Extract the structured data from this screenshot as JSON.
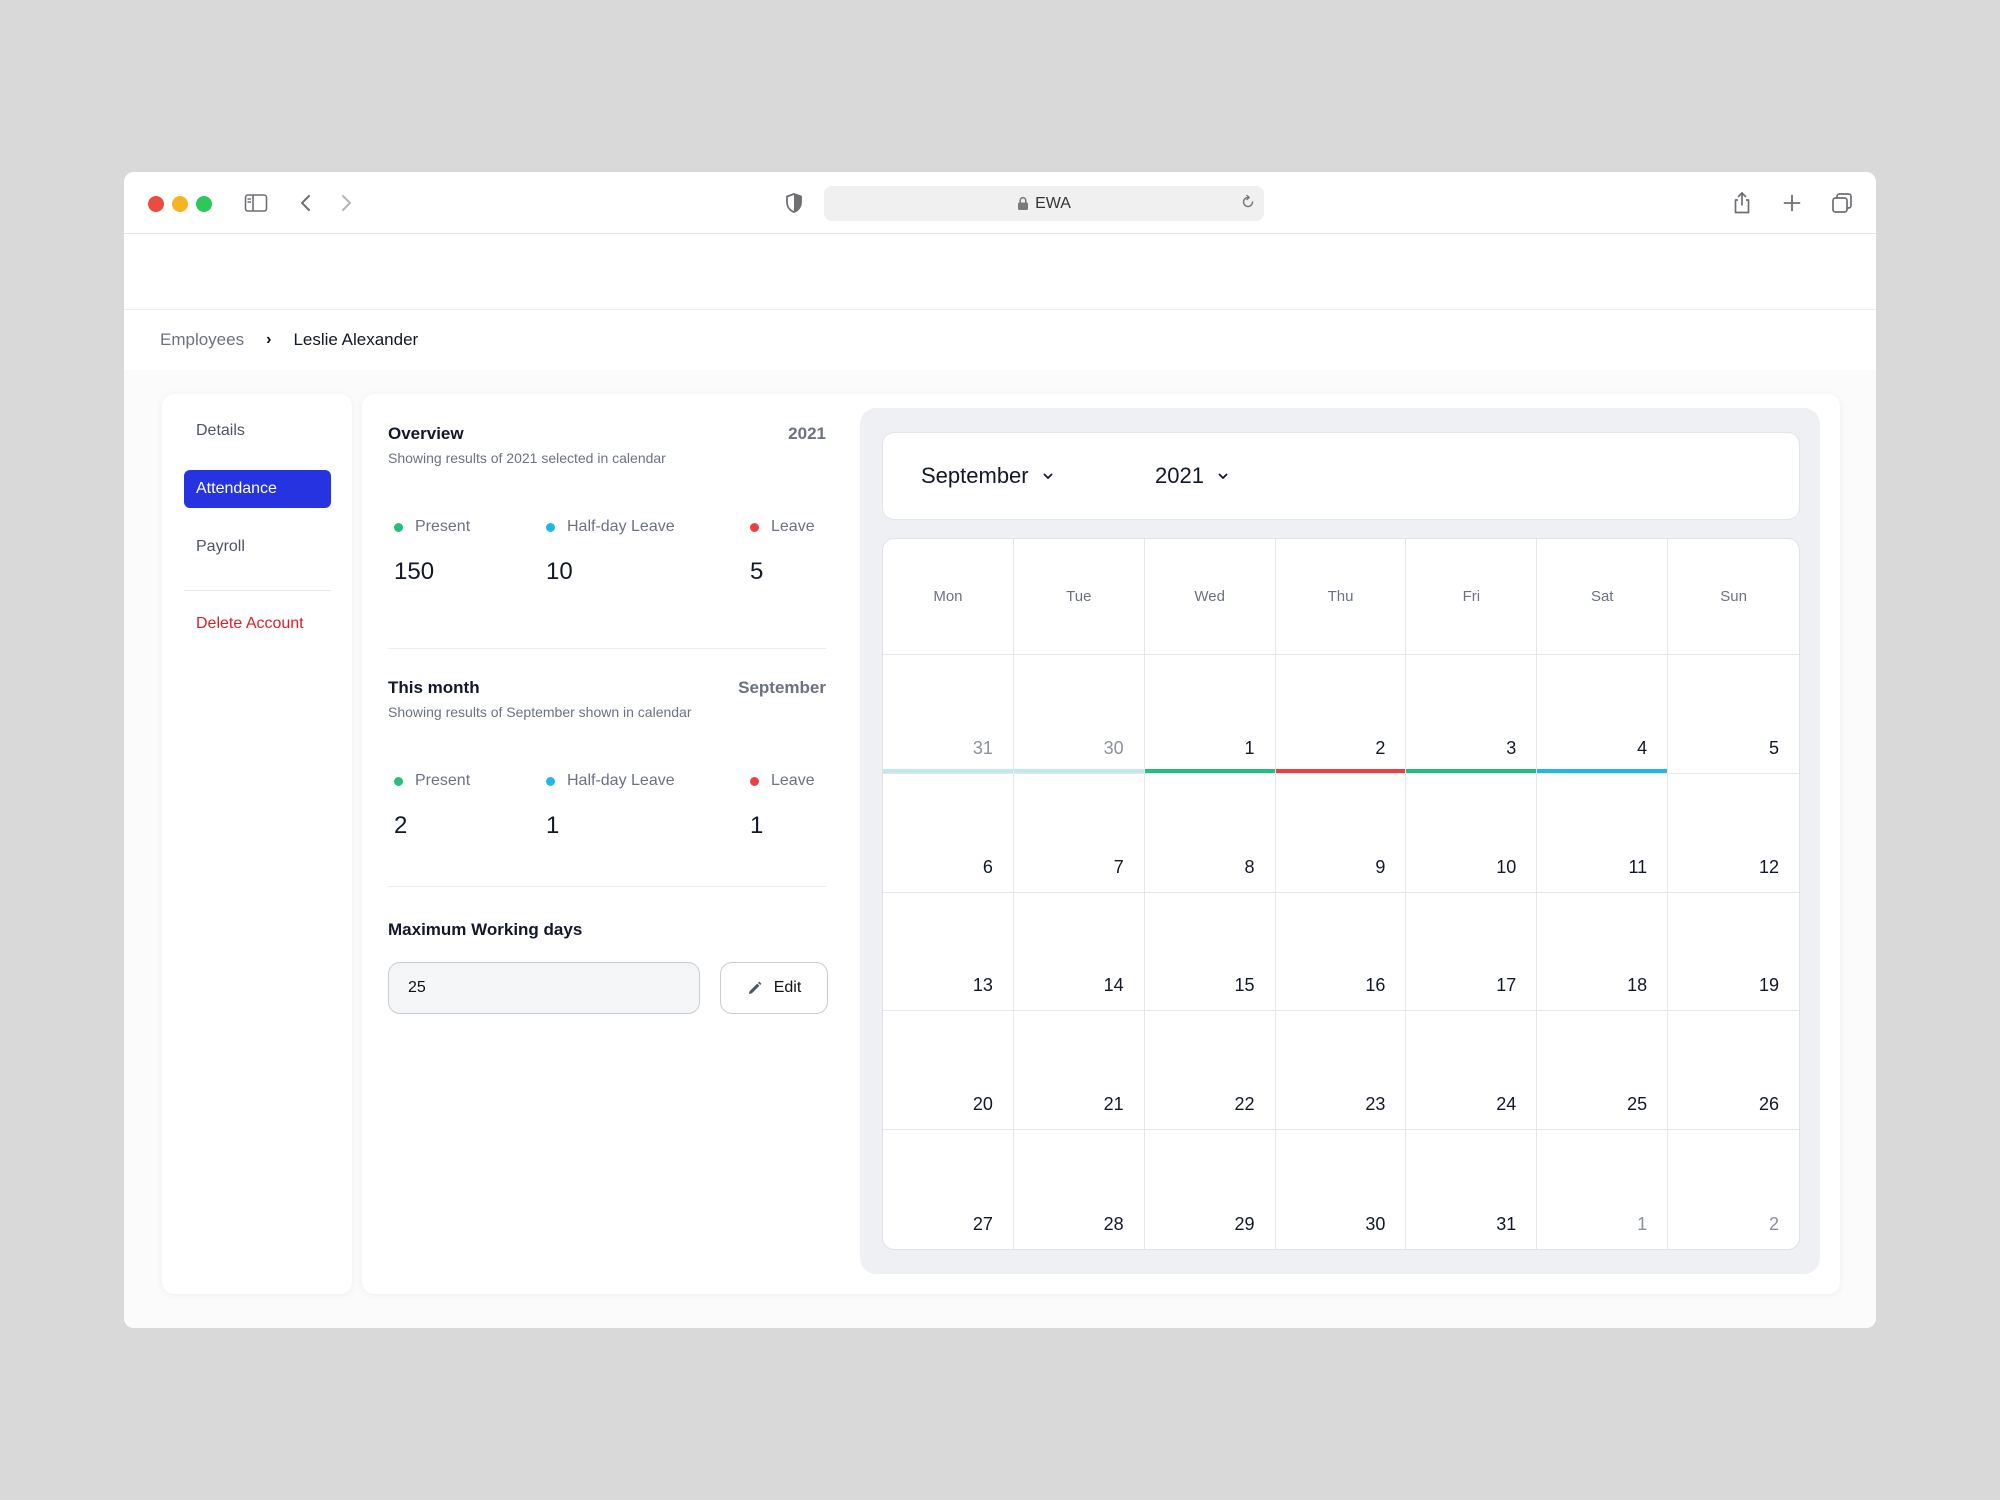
{
  "browser": {
    "url": "EWA",
    "icons": [
      "sidebar-toggle-icon",
      "back-icon",
      "forward-icon",
      "shield-icon",
      "lock-icon",
      "reload-icon",
      "share-icon",
      "new-tab-icon",
      "tabs-icon"
    ]
  },
  "breadcrumb": {
    "parent": "Employees",
    "separator": "›",
    "current": "Leslie Alexander"
  },
  "sidebar": {
    "items": [
      {
        "label": "Details",
        "active": false
      },
      {
        "label": "Attendance",
        "active": true
      },
      {
        "label": "Payroll",
        "active": false
      }
    ],
    "delete_label": "Delete Account"
  },
  "colors": {
    "present": "#22c07a",
    "half_day": "#1fb6ea",
    "leave": "#ea4040",
    "accent": "#2534e0",
    "danger": "#e11d2a"
  },
  "overview": {
    "title": "Overview",
    "subtitle": "Showing results of 2021 selected in calendar",
    "right": "2021",
    "present_label": "Present",
    "half_label": "Half-day Leave",
    "leave_label": "Leave",
    "present": "150",
    "half": "10",
    "leave": "5"
  },
  "month": {
    "title": "This month",
    "subtitle": "Showing results of September shown in calendar",
    "right": "September",
    "present_label": "Present",
    "half_label": "Half-day Leave",
    "leave_label": "Leave",
    "present": "2",
    "half": "1",
    "leave": "1"
  },
  "max_days": {
    "title": "Maximum Working days",
    "value": "25",
    "edit_label": "Edit"
  },
  "calendar": {
    "month": "September",
    "year": "2021",
    "weekdays": [
      "Mon",
      "Tue",
      "Wed",
      "Thu",
      "Fri",
      "Sat",
      "Sun"
    ],
    "days": [
      {
        "d": "31",
        "muted": true,
        "status": "half-dim"
      },
      {
        "d": "30",
        "muted": true,
        "status": "half-dim"
      },
      {
        "d": "1",
        "muted": false,
        "status": "present"
      },
      {
        "d": "2",
        "muted": false,
        "status": "leave"
      },
      {
        "d": "3",
        "muted": false,
        "status": "present"
      },
      {
        "d": "4",
        "muted": false,
        "status": "half"
      },
      {
        "d": "5",
        "muted": false,
        "status": ""
      },
      {
        "d": "6",
        "muted": false,
        "status": ""
      },
      {
        "d": "7",
        "muted": false,
        "status": ""
      },
      {
        "d": "8",
        "muted": false,
        "status": ""
      },
      {
        "d": "9",
        "muted": false,
        "status": ""
      },
      {
        "d": "10",
        "muted": false,
        "status": ""
      },
      {
        "d": "11",
        "muted": false,
        "status": ""
      },
      {
        "d": "12",
        "muted": false,
        "status": ""
      },
      {
        "d": "13",
        "muted": false,
        "status": ""
      },
      {
        "d": "14",
        "muted": false,
        "status": ""
      },
      {
        "d": "15",
        "muted": false,
        "status": ""
      },
      {
        "d": "16",
        "muted": false,
        "status": ""
      },
      {
        "d": "17",
        "muted": false,
        "status": ""
      },
      {
        "d": "18",
        "muted": false,
        "status": ""
      },
      {
        "d": "19",
        "muted": false,
        "status": ""
      },
      {
        "d": "20",
        "muted": false,
        "status": ""
      },
      {
        "d": "21",
        "muted": false,
        "status": ""
      },
      {
        "d": "22",
        "muted": false,
        "status": ""
      },
      {
        "d": "23",
        "muted": false,
        "status": ""
      },
      {
        "d": "24",
        "muted": false,
        "status": ""
      },
      {
        "d": "25",
        "muted": false,
        "status": ""
      },
      {
        "d": "26",
        "muted": false,
        "status": ""
      },
      {
        "d": "27",
        "muted": false,
        "status": ""
      },
      {
        "d": "28",
        "muted": false,
        "status": ""
      },
      {
        "d": "29",
        "muted": false,
        "status": ""
      },
      {
        "d": "30",
        "muted": false,
        "status": ""
      },
      {
        "d": "31",
        "muted": false,
        "status": ""
      },
      {
        "d": "1",
        "muted": true,
        "status": ""
      },
      {
        "d": "2",
        "muted": true,
        "status": ""
      }
    ]
  }
}
